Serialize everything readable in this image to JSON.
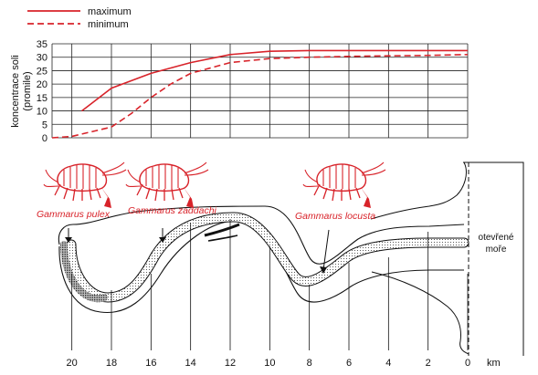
{
  "colors": {
    "curve": "#d8232a",
    "species": "#d8232a",
    "grid": "#222222"
  },
  "legend": {
    "items": [
      {
        "label": "maximum",
        "style": "solid"
      },
      {
        "label": "minimum",
        "style": "dashed"
      }
    ]
  },
  "chart_data": {
    "type": "line",
    "ylabel": "koncentrace soli (promile)",
    "ylabel_lines": [
      "koncentrace soli",
      "(promile)"
    ],
    "ylim": [
      0,
      35
    ],
    "yticks": [
      0,
      5,
      10,
      15,
      20,
      25,
      30,
      35
    ],
    "xlabel": "km",
    "xlim": [
      21,
      0
    ],
    "xticks": [
      20,
      18,
      16,
      14,
      12,
      10,
      8,
      6,
      4,
      2,
      0
    ],
    "grid": true,
    "series": [
      {
        "name": "maximum",
        "style": "solid",
        "x": [
          19.5,
          18,
          16,
          14,
          12,
          10,
          8,
          6,
          4,
          2,
          0
        ],
        "y": [
          10,
          18.5,
          24,
          28,
          31,
          32.2,
          32.5,
          32.5,
          32.5,
          32.5,
          32.5
        ]
      },
      {
        "name": "minimum",
        "style": "dashed",
        "x": [
          21,
          20,
          18,
          17,
          16,
          15,
          14,
          12,
          10,
          8,
          6,
          4,
          2,
          0
        ],
        "y": [
          0,
          0.5,
          4,
          9,
          15,
          20,
          24,
          28,
          29.5,
          30,
          30.3,
          30.5,
          30.7,
          31
        ]
      }
    ]
  },
  "diagram": {
    "species": [
      {
        "name": "Gammarus pulex",
        "km": 20
      },
      {
        "name": "Gammarus zaddachi",
        "km": 15.5
      },
      {
        "name": "Gammarus locusta",
        "km": 7.5
      }
    ],
    "open_sea_label": "otevřené moře",
    "open_sea_lines": [
      "otevřené",
      "moře"
    ]
  }
}
